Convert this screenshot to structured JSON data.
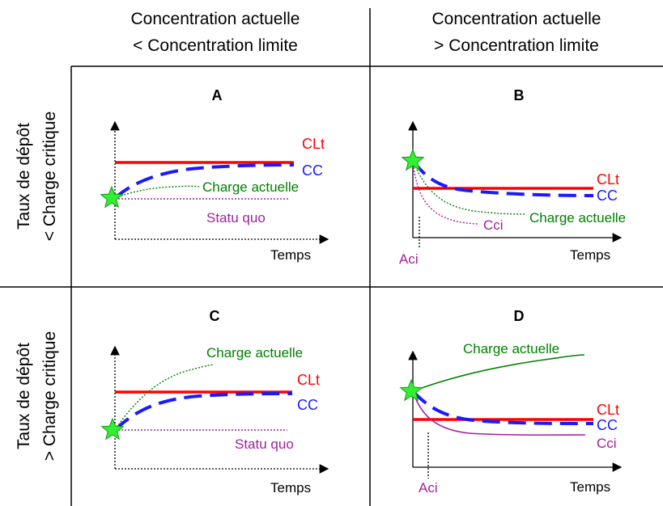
{
  "columns": [
    {
      "line1": "Concentration actuelle",
      "line2": "< Concentration limite"
    },
    {
      "line1": "Concentration actuelle",
      "line2": "> Concentration limite"
    }
  ],
  "rows": [
    {
      "line1": "Taux de dépôt",
      "line2": "< Charge critique"
    },
    {
      "line1": "Taux de dépôt",
      "line2": "> Charge critique"
    }
  ],
  "panels": {
    "A": {
      "letter": "A",
      "clt": "CLt",
      "cc": "CC",
      "charge": "Charge actuelle",
      "statu": "Statu quo",
      "temps": "Temps"
    },
    "B": {
      "letter": "B",
      "clt": "CLt",
      "cc": "CC",
      "charge": "Charge actuelle",
      "cci": "Cci",
      "aci": "Aci",
      "temps": "Temps"
    },
    "C": {
      "letter": "C",
      "clt": "CLt",
      "cc": "CC",
      "charge": "Charge actuelle",
      "statu": "Statu quo",
      "temps": "Temps"
    },
    "D": {
      "letter": "D",
      "clt": "CLt",
      "cc": "CC",
      "charge": "Charge actuelle",
      "cci": "Cci",
      "aci": "Aci",
      "temps": "Temps"
    }
  },
  "colors": {
    "clt": "#ff0000",
    "cc": "#1a1aff",
    "charge": "#008000",
    "statu": "#a020a0",
    "star": "#33ee33"
  }
}
